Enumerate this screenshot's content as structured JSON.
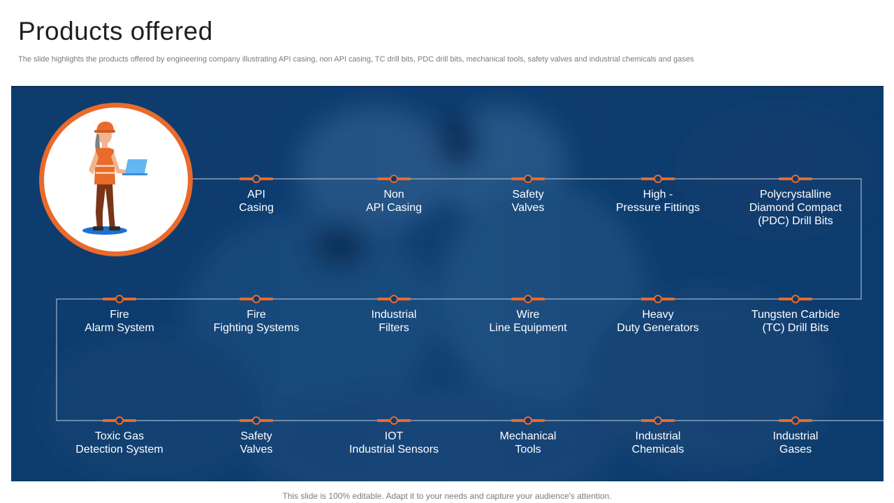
{
  "header": {
    "title": "Products offered",
    "subtitle": "The slide highlights the products offered by engineering company illustrating API casing, non API casing, TC drill bits, PDC drill bits, mechanical tools, safety valves and industrial chemicals and gases"
  },
  "colors": {
    "panel": "#0d3c6e",
    "accent": "#ea6a2b",
    "connector": "#9fb4cc"
  },
  "icons": {
    "avatar": "engineer-with-laptop-icon",
    "marker": "orange-bar-dot-marker-icon"
  },
  "products": {
    "row1": [
      "API\nCasing",
      "Non\nAPI Casing",
      "Safety\nValves",
      "High -\nPressure Fittings",
      "Polycrystalline\nDiamond Compact\n(PDC) Drill Bits"
    ],
    "row2": [
      "Fire\nAlarm System",
      "Fire\nFighting Systems",
      "Industrial\nFilters",
      "Wire\nLine Equipment",
      "Heavy\nDuty Generators",
      "Tungsten Carbide\n(TC) Drill Bits"
    ],
    "row3": [
      "Toxic Gas\nDetection System",
      "Safety\nValves",
      "IOT\nIndustrial Sensors",
      "Mechanical\nTools",
      "Industrial\nChemicals",
      "Industrial\nGases"
    ]
  },
  "footer": {
    "text": "This slide is 100% editable. Adapt it to your needs and capture your audience's attention."
  }
}
